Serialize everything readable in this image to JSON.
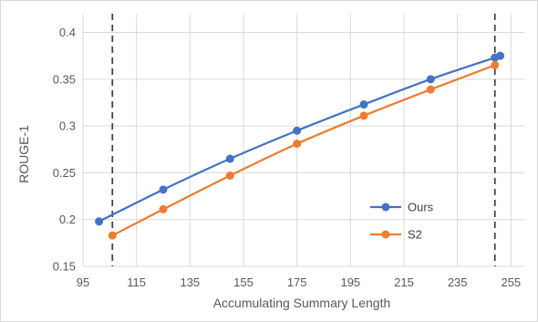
{
  "chart_data": {
    "type": "line",
    "title": "",
    "xlabel": "Accumulating Summary Length",
    "ylabel": "ROUGE-1",
    "xlim": [
      95,
      260
    ],
    "ylim": [
      0.15,
      0.42
    ],
    "x_ticks": [
      95,
      115,
      135,
      155,
      175,
      195,
      215,
      235,
      255
    ],
    "x_tick_labels": [
      "95",
      "115",
      "135",
      "155",
      "175",
      "195",
      "215",
      "235",
      "255"
    ],
    "y_ticks": [
      0.15,
      0.2,
      0.25,
      0.3,
      0.35,
      0.4
    ],
    "y_tick_labels": [
      "0.15",
      "0.2",
      "0.25",
      "0.3",
      "0.35",
      "0.4"
    ],
    "grid": true,
    "legend_position": "inside-bottom-right",
    "reference_lines_x": [
      106,
      249
    ],
    "series": [
      {
        "name": "Ours",
        "color": "#4472c4",
        "x": [
          101,
          125,
          150,
          175,
          200,
          225,
          249,
          251
        ],
        "y": [
          0.198,
          0.232,
          0.265,
          0.295,
          0.323,
          0.35,
          0.373,
          0.375
        ]
      },
      {
        "name": "S2",
        "color": "#ed7d31",
        "x": [
          106,
          125,
          150,
          175,
          200,
          225,
          249
        ],
        "y": [
          0.183,
          0.211,
          0.247,
          0.281,
          0.311,
          0.339,
          0.365
        ]
      }
    ]
  }
}
